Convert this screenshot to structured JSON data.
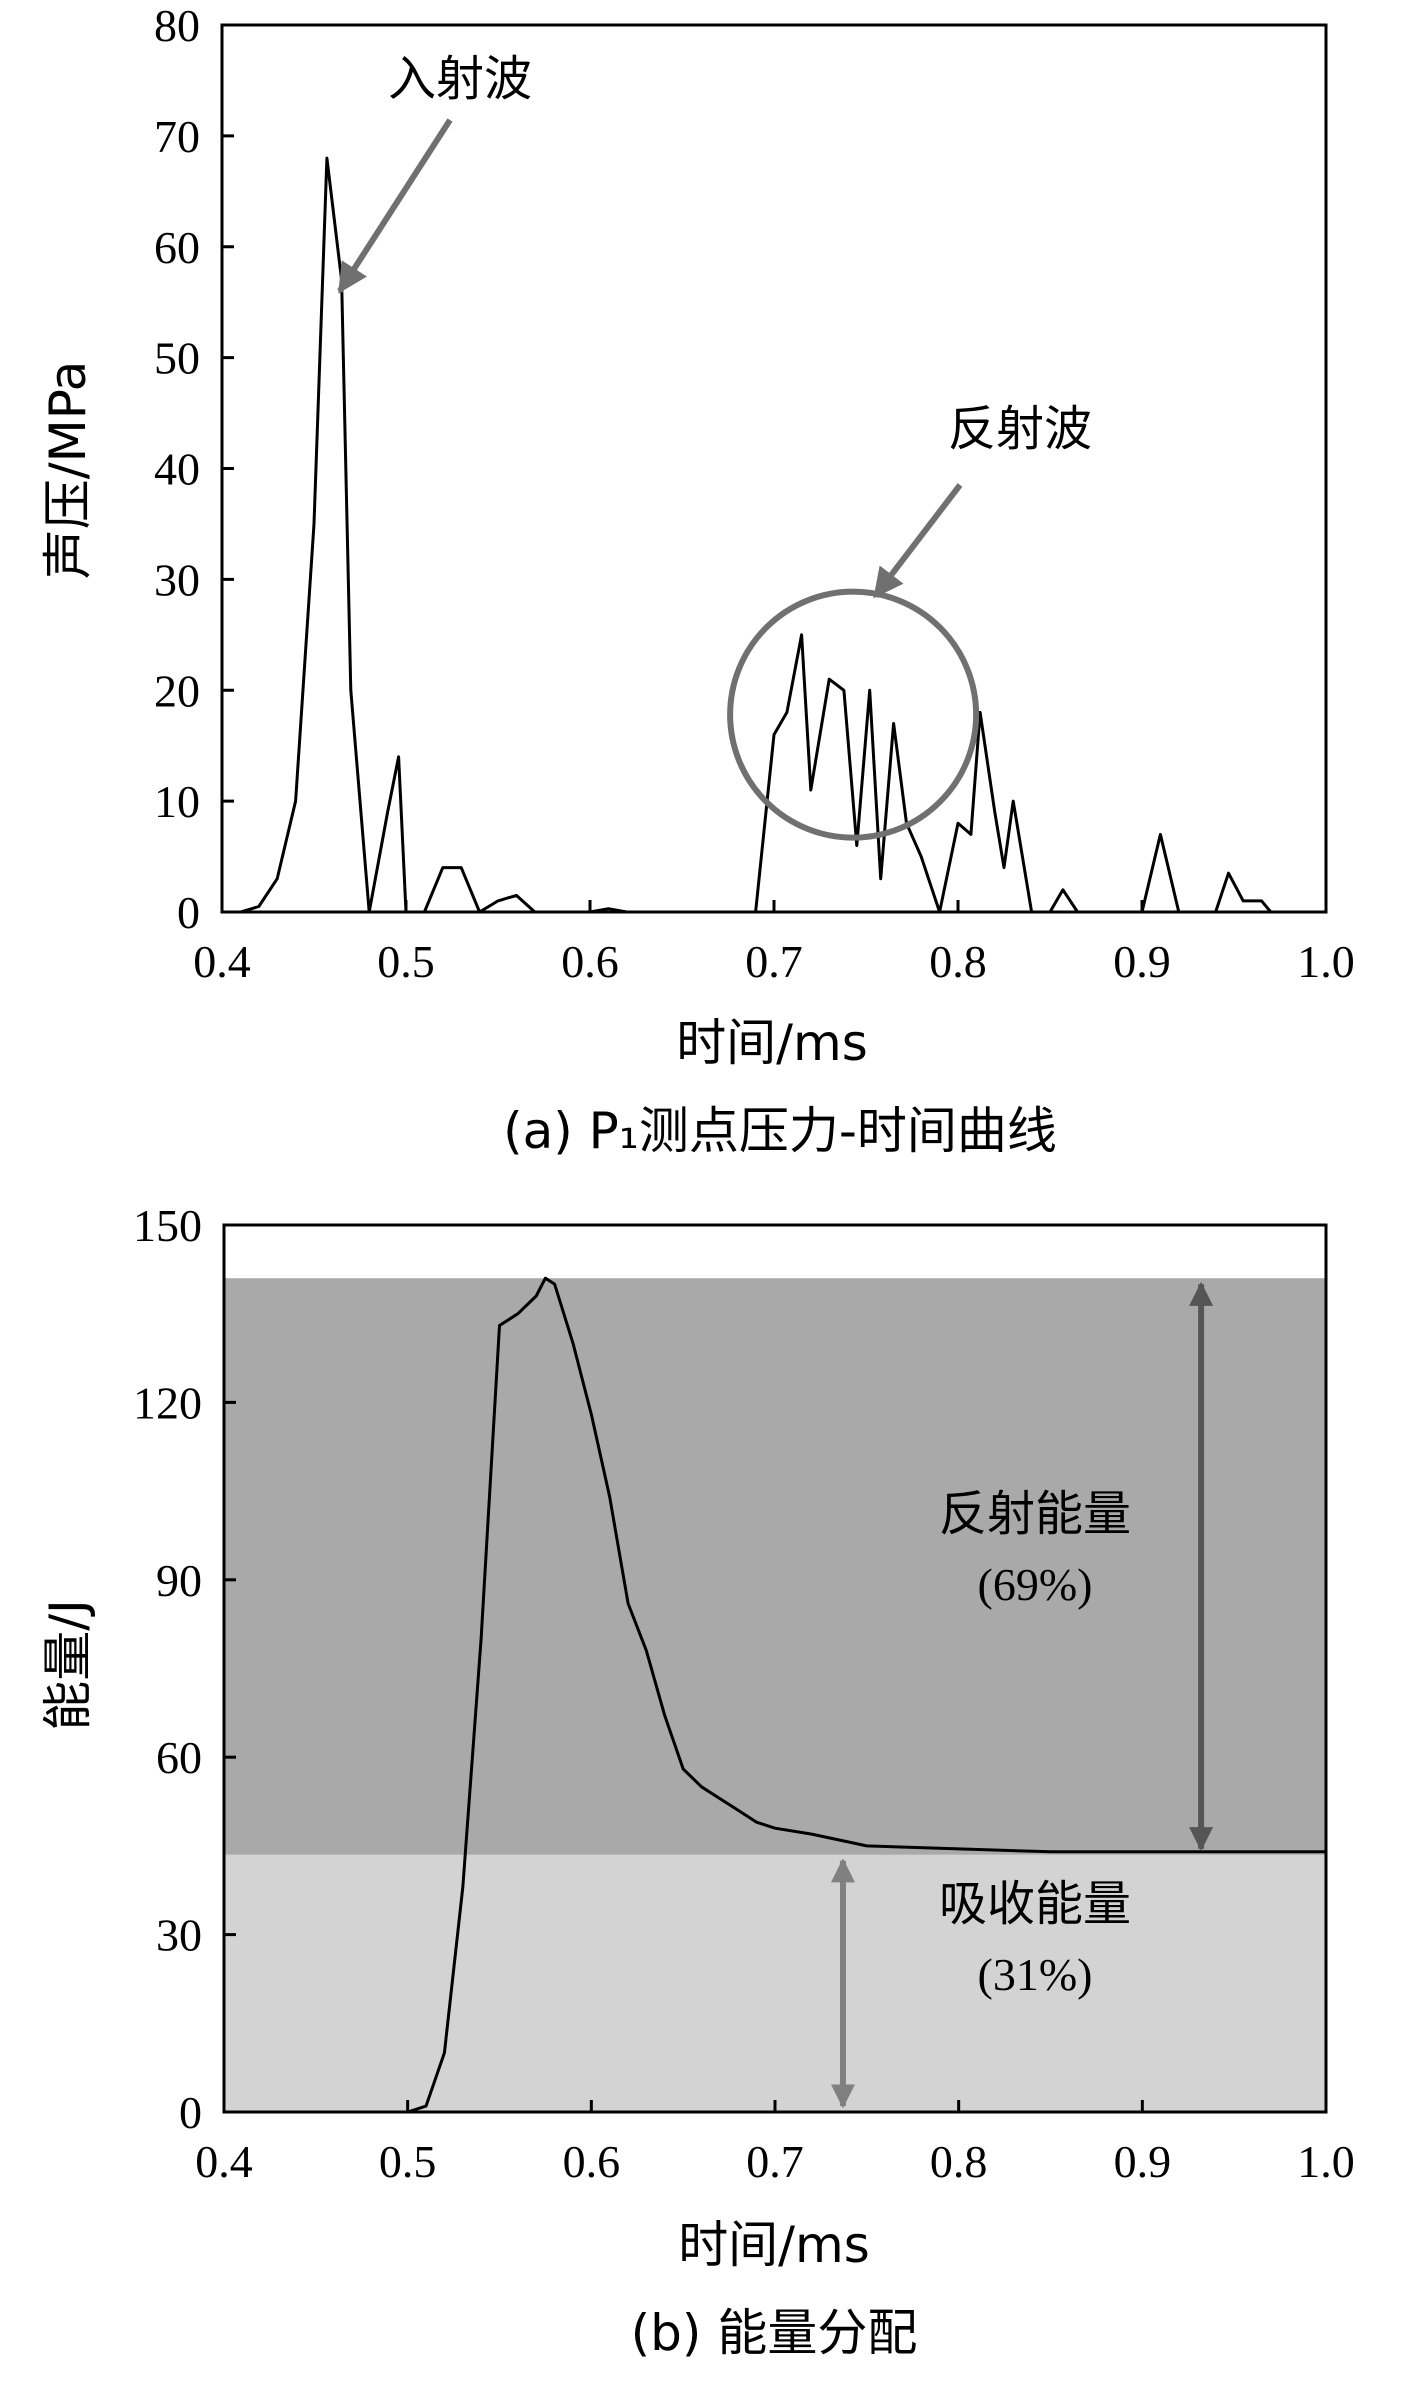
{
  "chart_data": [
    {
      "type": "line",
      "caption": "(a) P₁测点压力-时间曲线",
      "xlabel": "时间/ms",
      "ylabel": "声压/MPa",
      "xlim": [
        0.4,
        1.0
      ],
      "ylim": [
        0,
        80
      ],
      "xticks": [
        "0.4",
        "0.5",
        "0.6",
        "0.7",
        "0.8",
        "0.9",
        "1.0"
      ],
      "yticks": [
        "0",
        "10",
        "20",
        "30",
        "40",
        "50",
        "60",
        "70",
        "80"
      ],
      "grid": false,
      "x": [
        0.4,
        0.41,
        0.42,
        0.43,
        0.44,
        0.45,
        0.457,
        0.465,
        0.47,
        0.48,
        0.49,
        0.496,
        0.5,
        0.51,
        0.52,
        0.53,
        0.54,
        0.55,
        0.56,
        0.57,
        0.58,
        0.59,
        0.6,
        0.61,
        0.62,
        0.63,
        0.64,
        0.65,
        0.66,
        0.67,
        0.68,
        0.69,
        0.7,
        0.707,
        0.715,
        0.72,
        0.73,
        0.738,
        0.745,
        0.752,
        0.758,
        0.765,
        0.772,
        0.78,
        0.79,
        0.8,
        0.807,
        0.812,
        0.82,
        0.825,
        0.83,
        0.84,
        0.85,
        0.857,
        0.865,
        0.88,
        0.9,
        0.91,
        0.92,
        0.93,
        0.94,
        0.947,
        0.955,
        0.965,
        0.97,
        1.0
      ],
      "values": [
        0,
        0,
        0.5,
        3,
        10,
        35,
        68,
        57,
        20,
        0,
        9,
        14,
        0,
        0,
        4,
        4,
        0,
        1,
        1.5,
        0,
        0,
        0,
        0,
        0.3,
        0,
        0,
        0,
        0,
        0,
        0,
        0,
        0,
        16,
        18,
        25,
        11,
        21,
        20,
        6,
        20,
        3,
        17,
        8,
        5,
        0,
        8,
        7,
        18,
        9,
        4,
        10,
        0,
        0,
        2,
        0,
        0,
        0,
        7,
        0,
        0,
        0,
        3.5,
        1,
        1,
        0,
        0
      ],
      "annotations": [
        {
          "text": "入射波",
          "target": "incident peak near 0.46 ms"
        },
        {
          "text": "反射波",
          "target": "reflected wave cluster near 0.74 ms"
        }
      ]
    },
    {
      "type": "area",
      "caption": "(b) 能量分配",
      "xlabel": "时间/ms",
      "ylabel": "能量/J",
      "xlim": [
        0.4,
        1.0
      ],
      "ylim": [
        0,
        150
      ],
      "xticks": [
        "0.4",
        "0.5",
        "0.6",
        "0.7",
        "0.8",
        "0.9",
        "1.0"
      ],
      "yticks": [
        "0",
        "30",
        "60",
        "90",
        "120",
        "150"
      ],
      "grid": false,
      "x": [
        0.5,
        0.51,
        0.52,
        0.53,
        0.54,
        0.55,
        0.56,
        0.57,
        0.575,
        0.58,
        0.59,
        0.6,
        0.61,
        0.62,
        0.63,
        0.64,
        0.65,
        0.66,
        0.67,
        0.68,
        0.69,
        0.7,
        0.72,
        0.75,
        0.8,
        0.85,
        0.9,
        0.95,
        1.0
      ],
      "values": [
        0,
        1,
        10,
        38,
        80,
        133,
        135,
        138,
        141,
        140,
        130,
        118,
        104,
        86,
        78,
        67,
        58,
        55,
        53,
        51,
        49,
        48,
        47,
        45,
        44.5,
        44,
        44,
        44,
        44
      ],
      "bands": [
        {
          "name": "absorbed",
          "from": 0,
          "to": 43.5,
          "color": "#d3d3d3"
        },
        {
          "name": "reflected",
          "from": 43.5,
          "to": 141,
          "color": "#a9a9a9"
        }
      ],
      "annotations": [
        {
          "text": "反射能量",
          "sub": "(69%)"
        },
        {
          "text": "吸收能量",
          "sub": "(31%)"
        }
      ]
    }
  ],
  "colors": {
    "line": "#000000",
    "axis": "#000000",
    "arrow": "#707070",
    "circle": "#707070",
    "band_reflected": "#a9a9a9",
    "band_absorbed": "#d3d3d3",
    "arrow_b_dark": "#555555",
    "arrow_b_light": "#808080"
  }
}
